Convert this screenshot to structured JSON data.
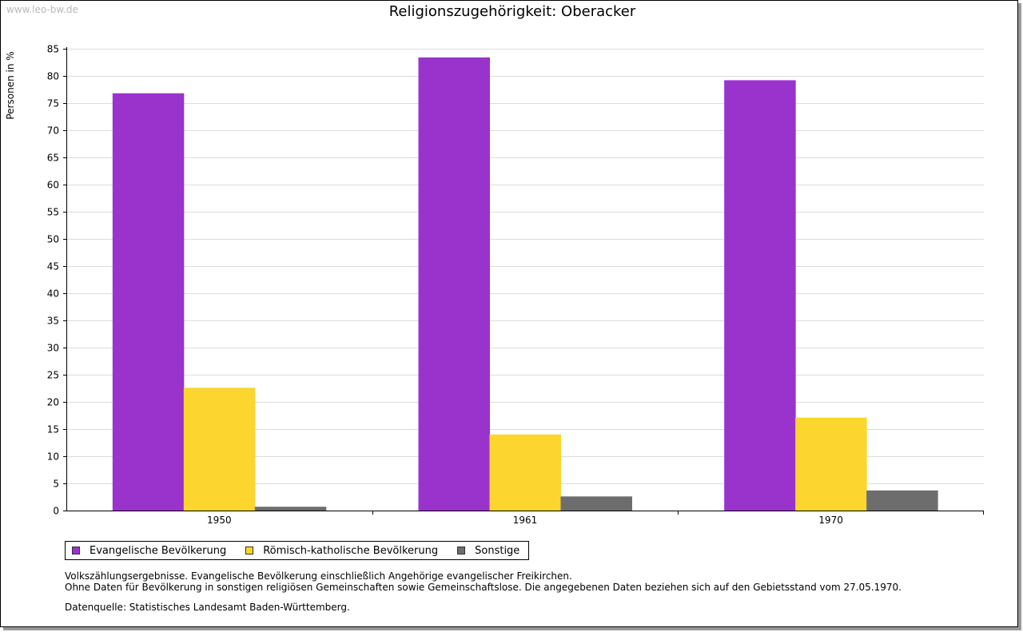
{
  "watermark": "www.leo-bw.de",
  "chart_data": {
    "type": "bar",
    "title": "Religionszugehörigkeit: Oberacker",
    "xlabel": "",
    "ylabel": "Personen in %",
    "ylim": [
      0,
      85
    ],
    "yticks": [
      0,
      5,
      10,
      15,
      20,
      25,
      30,
      35,
      40,
      45,
      50,
      55,
      60,
      65,
      70,
      75,
      80,
      85
    ],
    "grid": true,
    "categories": [
      "1950",
      "1961",
      "1970"
    ],
    "series": [
      {
        "name": "Evangelische Bevölkerung",
        "color": "#9933cc",
        "values": [
          76.8,
          83.4,
          79.2
        ]
      },
      {
        "name": "Römisch-katholische Bevölkerung",
        "color": "#fcd52e",
        "values": [
          22.6,
          14.0,
          17.1
        ]
      },
      {
        "name": "Sonstige",
        "color": "#6d6d6d",
        "values": [
          0.7,
          2.6,
          3.7
        ]
      }
    ],
    "legend_position": "bottom-left"
  },
  "notes": [
    "Volkszählungsergebnisse. Evangelische Bevölkerung einschließlich Angehörige evangelischer Freikirchen.",
    "Ohne Daten für Bevölkerung in sonstigen religiösen Gemeinschaften sowie Gemeinschaftslose. Die angegebenen Daten beziehen sich auf den Gebietsstand vom 27.05.1970."
  ],
  "source": "Datenquelle: Statistisches Landesamt Baden-Württemberg."
}
